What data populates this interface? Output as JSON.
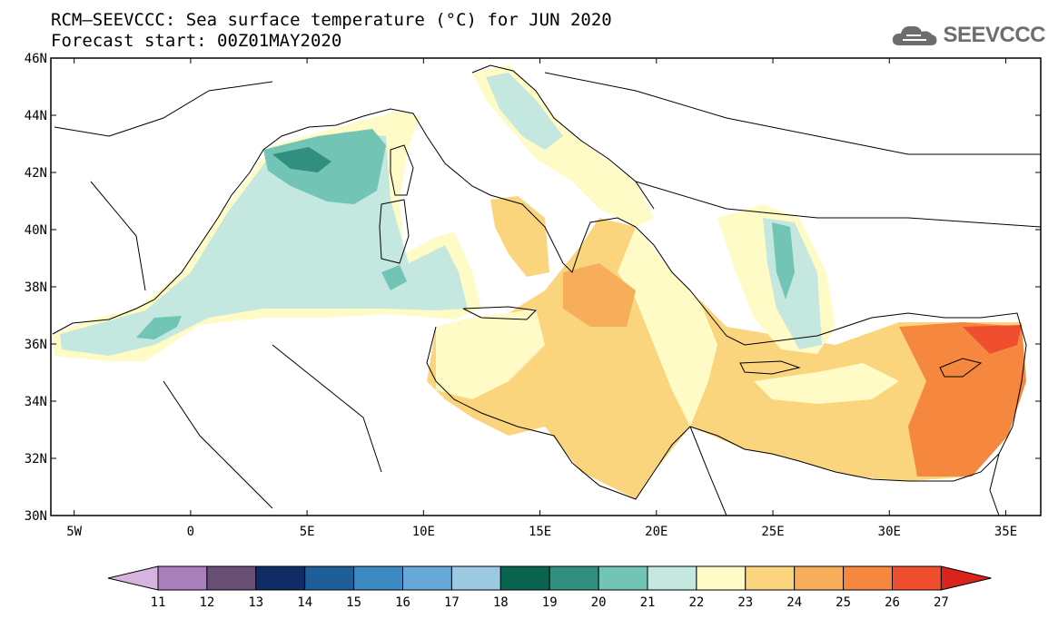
{
  "title": {
    "line1": "RCM–SEEVCCC: Sea surface temperature (°C) for JUN 2020",
    "line2": "Forecast start: 00Z01MAY2020"
  },
  "logo": {
    "text": "SEEVCCC",
    "icon": "cloud-icon"
  },
  "map": {
    "lat_labels": [
      "46N",
      "44N",
      "42N",
      "40N",
      "38N",
      "36N",
      "34N",
      "32N",
      "30N"
    ],
    "lon_labels": [
      "5W",
      "0",
      "5E",
      "10E",
      "15E",
      "20E",
      "25E",
      "30E",
      "35E"
    ],
    "lat_range": [
      30,
      46
    ],
    "lon_range": [
      -6,
      36.5
    ]
  },
  "colorbar": {
    "labels": [
      "11",
      "12",
      "13",
      "14",
      "15",
      "16",
      "17",
      "18",
      "19",
      "20",
      "21",
      "22",
      "23",
      "24",
      "25",
      "26",
      "27"
    ],
    "colors": [
      "#d7b4e0",
      "#a87fba",
      "#6a4f74",
      "#0f2d64",
      "#1f5f99",
      "#3c89c4",
      "#66a9d8",
      "#9cc9e2",
      "#08634f",
      "#318f80",
      "#72c4b4",
      "#c4e8e0",
      "#fffbc7",
      "#fbd57e",
      "#f7ae5a",
      "#f5873f",
      "#ef4f2e",
      "#d9241e"
    ]
  }
}
